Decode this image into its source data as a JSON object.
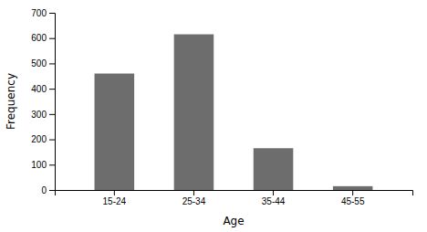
{
  "chart_data": {
    "type": "bar",
    "categories": [
      "15-24",
      "25-34",
      "35-44",
      "45-55"
    ],
    "values": [
      460,
      615,
      165,
      15
    ],
    "color": "#6d6d6d",
    "xlabel": "Age",
    "ylabel": "Frequency",
    "ylim": [
      0,
      700
    ],
    "yticks": [
      0,
      100,
      200,
      300,
      400,
      500,
      600,
      700
    ],
    "grid": false
  }
}
